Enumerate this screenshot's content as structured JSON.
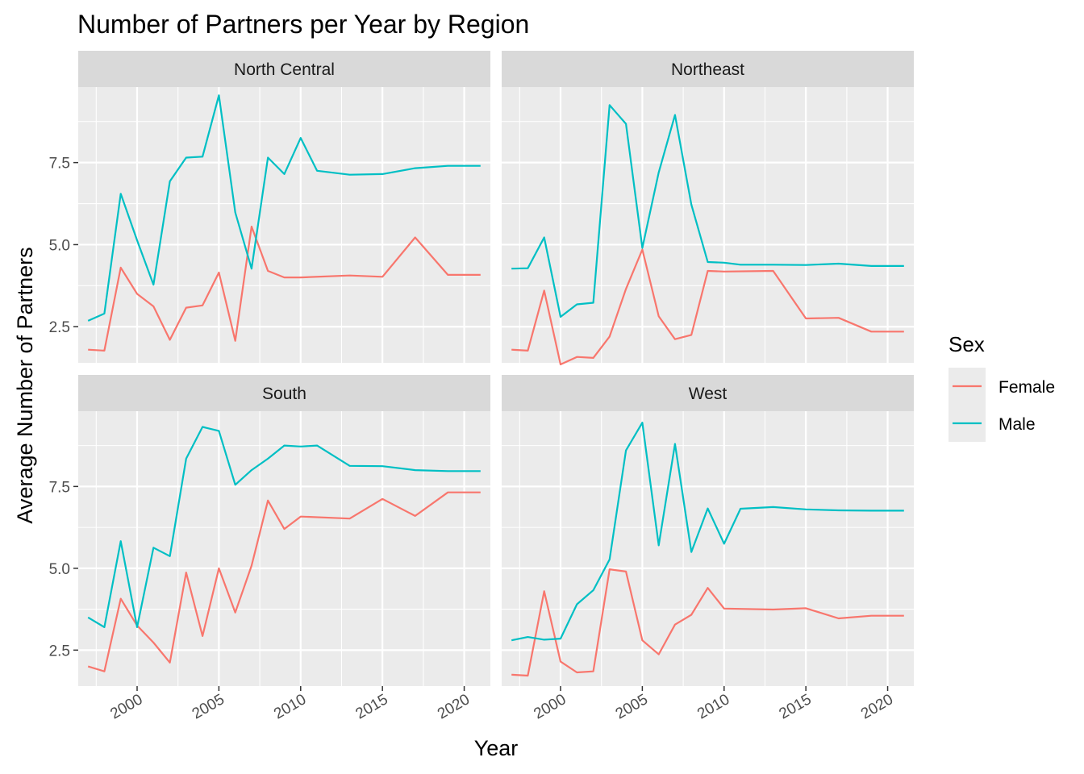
{
  "chart_data": {
    "type": "line",
    "title": "Number of Partners per Year by Region",
    "xlabel": "Year",
    "ylabel": "Average Number of Partners",
    "xlim": [
      1996.4,
      2021.6
    ],
    "ylim": [
      1.4,
      9.8
    ],
    "x_ticks": [
      2000,
      2005,
      2010,
      2015,
      2020
    ],
    "y_ticks": [
      2.5,
      5.0,
      7.5
    ],
    "y_tick_labels": [
      "2.5",
      "5.0",
      "7.5"
    ],
    "grid": true,
    "legend": {
      "title": "Sex",
      "position": "right",
      "entries": [
        {
          "name": "Female",
          "color": "#F8766D"
        },
        {
          "name": "Male",
          "color": "#00BFC4"
        }
      ]
    },
    "facets": [
      {
        "name": "North Central",
        "series": [
          {
            "name": "Female",
            "color": "#F8766D",
            "x": [
              1997,
              1998,
              1999,
              2000,
              2001,
              2002,
              2003,
              2004,
              2005,
              2006,
              2007,
              2008,
              2009,
              2010,
              2013,
              2015,
              2017,
              2019,
              2021
            ],
            "y": [
              1.8,
              1.77,
              4.3,
              3.5,
              3.12,
              2.1,
              3.08,
              3.15,
              4.15,
              2.07,
              5.55,
              4.2,
              4.0,
              4.0,
              4.06,
              4.02,
              5.22,
              4.08,
              4.08
            ]
          },
          {
            "name": "Male",
            "color": "#00BFC4",
            "x": [
              1997,
              1998,
              1999,
              2000,
              2001,
              2002,
              2003,
              2004,
              2005,
              2006,
              2007,
              2008,
              2009,
              2010,
              2011,
              2013,
              2015,
              2017,
              2019,
              2021
            ],
            "y": [
              2.68,
              2.9,
              6.55,
              5.13,
              3.78,
              6.93,
              7.65,
              7.68,
              9.55,
              5.98,
              4.27,
              7.65,
              7.15,
              8.25,
              7.25,
              7.13,
              7.15,
              7.33,
              7.4,
              7.4
            ]
          }
        ]
      },
      {
        "name": "Northeast",
        "series": [
          {
            "name": "Female",
            "color": "#F8766D",
            "x": [
              1997,
              1998,
              1999,
              2000,
              2001,
              2002,
              2003,
              2004,
              2005,
              2006,
              2007,
              2008,
              2009,
              2010,
              2013,
              2015,
              2017,
              2019,
              2021
            ],
            "y": [
              1.8,
              1.77,
              3.6,
              1.35,
              1.58,
              1.55,
              2.2,
              3.65,
              4.85,
              2.82,
              2.12,
              2.25,
              4.2,
              4.18,
              4.2,
              2.75,
              2.77,
              2.35,
              2.35
            ]
          },
          {
            "name": "Male",
            "color": "#00BFC4",
            "x": [
              1997,
              1998,
              1999,
              2000,
              2001,
              2002,
              2003,
              2004,
              2005,
              2006,
              2007,
              2008,
              2009,
              2010,
              2011,
              2013,
              2015,
              2017,
              2019,
              2021
            ],
            "y": [
              4.27,
              4.28,
              5.22,
              2.8,
              3.18,
              3.23,
              9.25,
              8.68,
              4.9,
              7.2,
              8.95,
              6.22,
              4.47,
              4.45,
              4.39,
              4.39,
              4.38,
              4.42,
              4.35,
              4.35
            ]
          }
        ]
      },
      {
        "name": "South",
        "series": [
          {
            "name": "Female",
            "color": "#F8766D",
            "x": [
              1997,
              1998,
              1999,
              2000,
              2001,
              2002,
              2003,
              2004,
              2005,
              2006,
              2007,
              2008,
              2009,
              2010,
              2013,
              2015,
              2017,
              2019,
              2021
            ],
            "y": [
              2.0,
              1.85,
              4.07,
              3.25,
              2.73,
              2.12,
              4.87,
              2.93,
              5.0,
              3.65,
              5.08,
              7.07,
              6.2,
              6.58,
              6.52,
              7.12,
              6.6,
              7.32,
              7.32
            ]
          },
          {
            "name": "Male",
            "color": "#00BFC4",
            "x": [
              1997,
              1998,
              1999,
              2000,
              2001,
              2002,
              2003,
              2004,
              2005,
              2006,
              2007,
              2008,
              2009,
              2010,
              2011,
              2013,
              2015,
              2017,
              2019,
              2021
            ],
            "y": [
              3.5,
              3.2,
              5.83,
              3.2,
              5.63,
              5.37,
              8.35,
              9.32,
              9.2,
              7.55,
              8.0,
              8.35,
              8.75,
              8.72,
              8.75,
              8.13,
              8.12,
              8.0,
              7.97,
              7.97
            ]
          }
        ]
      },
      {
        "name": "West",
        "series": [
          {
            "name": "Female",
            "color": "#F8766D",
            "x": [
              1997,
              1998,
              1999,
              2000,
              2001,
              2002,
              2003,
              2004,
              2005,
              2006,
              2007,
              2008,
              2009,
              2010,
              2013,
              2015,
              2017,
              2019,
              2021
            ],
            "y": [
              1.75,
              1.72,
              4.3,
              2.15,
              1.82,
              1.85,
              4.97,
              4.9,
              2.8,
              2.37,
              3.28,
              3.58,
              4.4,
              3.77,
              3.74,
              3.78,
              3.47,
              3.55,
              3.55
            ]
          },
          {
            "name": "Male",
            "color": "#00BFC4",
            "x": [
              1997,
              1998,
              1999,
              2000,
              2001,
              2002,
              2003,
              2004,
              2005,
              2006,
              2007,
              2008,
              2009,
              2010,
              2011,
              2013,
              2015,
              2017,
              2019,
              2021
            ],
            "y": [
              2.8,
              2.9,
              2.82,
              2.85,
              3.9,
              4.33,
              5.27,
              8.6,
              9.45,
              5.7,
              8.8,
              5.5,
              6.83,
              5.75,
              6.82,
              6.87,
              6.8,
              6.77,
              6.76,
              6.76
            ]
          }
        ]
      }
    ]
  }
}
